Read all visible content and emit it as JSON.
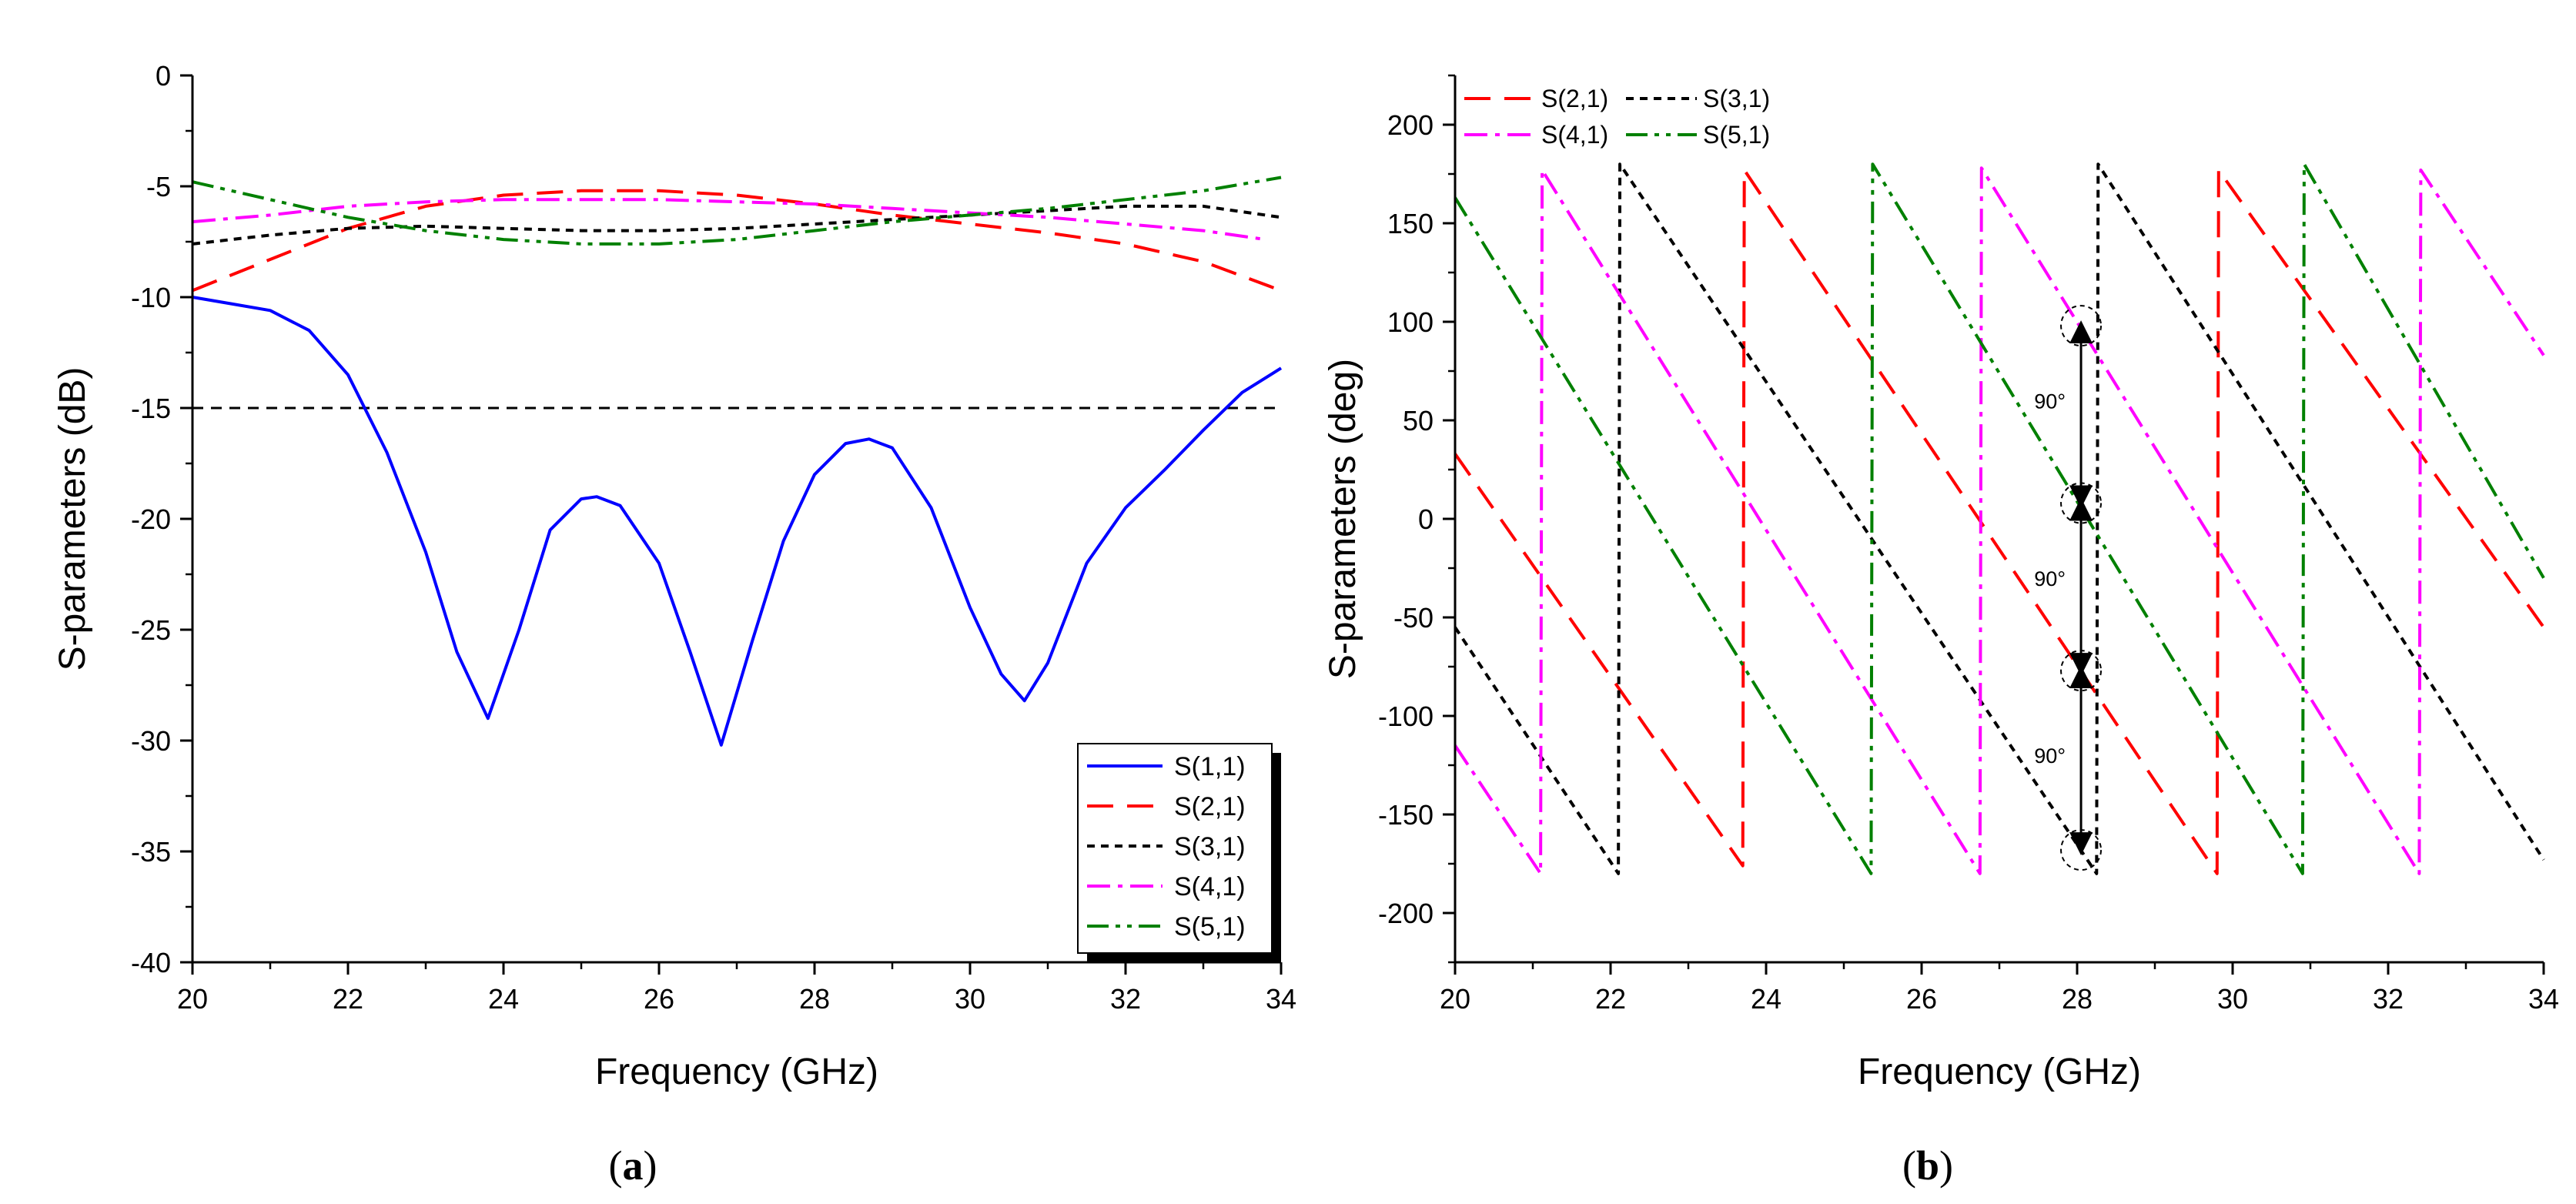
{
  "chart_data": [
    {
      "id": "a",
      "type": "line",
      "caption": "a",
      "xlabel": "Frequency (GHz)",
      "ylabel": "S-parameters (dB)",
      "xlim": [
        20,
        34
      ],
      "ylim": [
        -40,
        0
      ],
      "xticks": [
        "20",
        "22",
        "24",
        "26",
        "28",
        "30",
        "32",
        "34"
      ],
      "yticks": [
        "0",
        "-5",
        "-10",
        "-15",
        "-20",
        "-25",
        "-30",
        "-35",
        "-40"
      ],
      "legend_position": "bottom-right",
      "reference_line": {
        "y": -15,
        "style": "dashed",
        "color": "#000000"
      },
      "series": [
        {
          "name": "S(1,1)",
          "color": "#0000ff",
          "dash": "solid",
          "x": [
            20,
            20.5,
            21,
            21.5,
            22,
            22.5,
            23,
            23.4,
            23.8,
            24.2,
            24.6,
            25,
            25.2,
            25.5,
            26,
            26.4,
            26.8,
            27.2,
            27.6,
            28,
            28.4,
            28.7,
            29,
            29.5,
            30,
            30.4,
            30.7,
            31,
            31.5,
            32,
            32.5,
            33,
            33.5,
            34
          ],
          "values": [
            -10,
            -10.3,
            -10.6,
            -11.5,
            -13.5,
            -17,
            -21.5,
            -26,
            -29,
            -25,
            -20.5,
            -19.1,
            -19,
            -19.4,
            -22,
            -26,
            -30.2,
            -25.5,
            -21,
            -18,
            -16.6,
            -16.4,
            -16.8,
            -19.5,
            -24,
            -27,
            -28.2,
            -26.5,
            -22,
            -19.5,
            -17.8,
            -16,
            -14.3,
            -13.2
          ]
        },
        {
          "name": "S(2,1)",
          "color": "#ff0000",
          "dash": "long-dash",
          "x": [
            20,
            21,
            22,
            23,
            24,
            25,
            26,
            27,
            28,
            29,
            30,
            31,
            32,
            33,
            34
          ],
          "values": [
            -9.7,
            -8.3,
            -6.9,
            -5.9,
            -5.4,
            -5.2,
            -5.2,
            -5.4,
            -5.8,
            -6.3,
            -6.7,
            -7.1,
            -7.6,
            -8.4,
            -9.7
          ]
        },
        {
          "name": "S(3,1)",
          "color": "#000000",
          "dash": "dotted",
          "x": [
            20,
            21,
            22,
            23,
            24,
            25,
            26,
            27,
            28,
            29,
            30,
            31,
            32,
            33,
            34
          ],
          "values": [
            -7.6,
            -7.2,
            -6.9,
            -6.8,
            -6.9,
            -7.0,
            -7.0,
            -6.9,
            -6.7,
            -6.5,
            -6.3,
            -6.1,
            -5.9,
            -5.9,
            -6.4
          ]
        },
        {
          "name": "S(4,1)",
          "color": "#ff00ff",
          "dash": "dash-dot",
          "x": [
            20,
            21,
            22,
            23,
            24,
            25,
            26,
            27,
            28,
            29,
            30,
            31,
            32,
            33,
            33.8
          ],
          "values": [
            -6.6,
            -6.3,
            -5.9,
            -5.7,
            -5.6,
            -5.6,
            -5.6,
            -5.7,
            -5.8,
            -6.0,
            -6.2,
            -6.4,
            -6.7,
            -7.0,
            -7.4
          ]
        },
        {
          "name": "S(5,1)",
          "color": "#008000",
          "dash": "dash-dot-dot",
          "x": [
            20,
            21,
            22,
            23,
            24,
            25,
            26,
            27,
            28,
            29,
            30,
            31,
            32,
            33,
            34
          ],
          "values": [
            -4.8,
            -5.6,
            -6.4,
            -7.0,
            -7.4,
            -7.6,
            -7.6,
            -7.4,
            -7.0,
            -6.6,
            -6.3,
            -6.0,
            -5.6,
            -5.2,
            -4.6
          ]
        }
      ]
    },
    {
      "id": "b",
      "type": "line",
      "caption": "b",
      "xlabel": "Frequency (GHz)",
      "ylabel": "S-parameters (deg)",
      "xlim": [
        20,
        34
      ],
      "ylim": [
        -225,
        225
      ],
      "xticks": [
        "20",
        "22",
        "24",
        "26",
        "28",
        "30",
        "32",
        "34"
      ],
      "yticks": [
        "200",
        "150",
        "100",
        "50",
        "0",
        "-50",
        "-100",
        "-150",
        "-200"
      ],
      "legend_position": "top-left",
      "annotations": [
        {
          "text": "90°",
          "x": 27.65,
          "y": 60
        },
        {
          "text": "90°",
          "x": 27.65,
          "y": -30
        },
        {
          "text": "90°",
          "x": 27.65,
          "y": -120
        }
      ],
      "markers": [
        {
          "x": 28.05,
          "y": 98
        },
        {
          "x": 28.05,
          "y": 8
        },
        {
          "x": 28.05,
          "y": -77
        },
        {
          "x": 28.05,
          "y": -168
        }
      ],
      "arrows": [
        {
          "x": 28.05,
          "from": 98,
          "to": 8
        },
        {
          "x": 28.05,
          "from": 8,
          "to": -77
        },
        {
          "x": 28.05,
          "from": -77,
          "to": -168
        }
      ],
      "series": [
        {
          "name": "S(2,1)",
          "color": "#ff0000",
          "dash": "long-dash",
          "x": [
            20,
            23.7,
            23.72,
            29.8,
            29.82,
            34
          ],
          "values": [
            33,
            -176,
            177,
            -180,
            177,
            -55
          ]
        },
        {
          "name": "S(3,1)",
          "color": "#000000",
          "dash": "dotted",
          "x": [
            20,
            22.1,
            22.12,
            28.25,
            28.27,
            34
          ],
          "values": [
            -55,
            -180,
            180,
            -180,
            180,
            -173
          ]
        },
        {
          "name": "S(4,1)",
          "color": "#ff00ff",
          "dash": "dash-dot",
          "x": [
            20,
            21.1,
            21.12,
            26.75,
            26.77,
            32.4,
            32.42,
            34
          ],
          "values": [
            -115,
            -180,
            177,
            -180,
            178,
            -180,
            177,
            83
          ]
        },
        {
          "name": "S(5,1)",
          "color": "#008000",
          "dash": "dash-dot-dot",
          "x": [
            20,
            25.35,
            25.37,
            30.9,
            30.92,
            34
          ],
          "values": [
            163,
            -180,
            180,
            -180,
            180,
            -30
          ]
        }
      ]
    }
  ]
}
